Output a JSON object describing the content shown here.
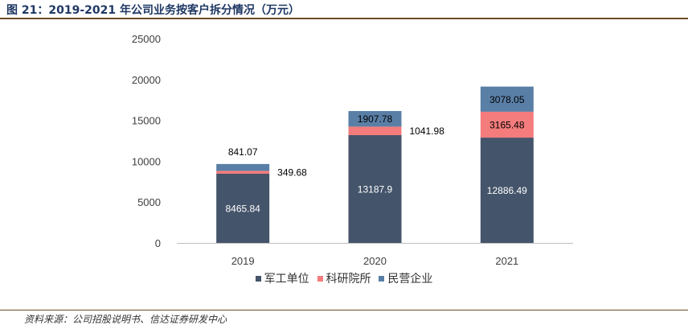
{
  "title": "图 21：2019-2021 年公司业务按客户拆分情况（万元）",
  "source": "资料来源：公司招股说明书、信达证券研发中心",
  "chart_data": {
    "type": "bar",
    "stacked": true,
    "categories": [
      "2019",
      "2020",
      "2021"
    ],
    "ylim": [
      0,
      25000
    ],
    "yticks": [
      0,
      5000,
      10000,
      15000,
      20000,
      25000
    ],
    "grid": false,
    "legend_position": "bottom",
    "series": [
      {
        "name": "军工单位",
        "color": "#44546a",
        "values": [
          8465.84,
          13187.9,
          12886.49
        ],
        "labels": [
          "8465.84",
          "13187.9",
          "12886.49"
        ]
      },
      {
        "name": "科研院所",
        "color": "#f47c7c",
        "values": [
          349.68,
          1041.98,
          3165.48
        ],
        "labels": [
          "349.68",
          "1041.98",
          "3165.48"
        ]
      },
      {
        "name": "民营企业",
        "color": "#5a7fa6",
        "values": [
          841.07,
          1907.78,
          3078.05
        ],
        "labels": [
          "841.07",
          "1907.78",
          "3078.05"
        ]
      }
    ]
  }
}
